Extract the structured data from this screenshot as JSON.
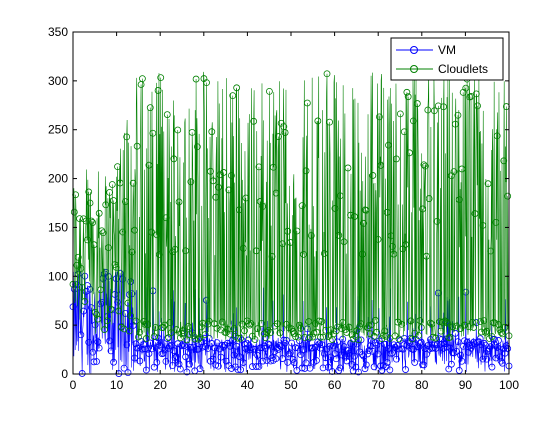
{
  "chart_data": {
    "type": "line",
    "xlim": [
      0,
      100
    ],
    "ylim": [
      0,
      350
    ],
    "x_ticks": [
      "0",
      "10",
      "20",
      "30",
      "40",
      "50",
      "60",
      "70",
      "80",
      "90",
      "100"
    ],
    "y_ticks": [
      "0",
      "50",
      "100",
      "150",
      "200",
      "250",
      "300",
      "350"
    ],
    "legend_position": "top-right",
    "grid": false,
    "marker": "circle",
    "series": [
      {
        "name": "VM",
        "color": "#0000ff",
        "marker": "circle",
        "point_count": 1000,
        "approx_range": [
          0,
          110
        ],
        "typical_peak_after_x15": 35
      },
      {
        "name": "Cloudlets",
        "color": "#008000",
        "marker": "circle",
        "point_count": 1000,
        "approx_range": [
          30,
          310
        ],
        "typical_peak_after_x15": 280
      }
    ]
  }
}
